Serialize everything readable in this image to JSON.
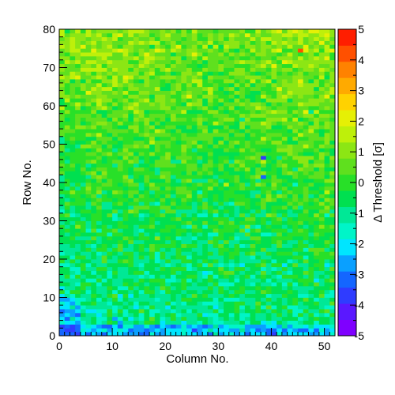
{
  "chart_data": {
    "type": "heatmap",
    "title": "",
    "xlabel": "Column No.",
    "ylabel": "Row No.",
    "zlabel": "Δ Threshold [σ]",
    "x_range": [
      0,
      52
    ],
    "y_range": [
      0,
      80
    ],
    "z_range": [
      -5,
      5
    ],
    "x_bins": 52,
    "y_bins": 80,
    "x_ticks": [
      0,
      10,
      20,
      30,
      40,
      50
    ],
    "y_ticks": [
      0,
      10,
      20,
      30,
      40,
      50,
      60,
      70,
      80
    ],
    "z_ticks": [
      -5,
      -4,
      -3,
      -2,
      -1,
      0,
      1,
      2,
      3,
      4,
      5
    ],
    "grid": false,
    "palette_position": "right",
    "palette_colors": [
      "#7f00ff",
      "#5a18ff",
      "#2f3cff",
      "#1466ff",
      "#0aa0ff",
      "#00e5ff",
      "#00f5c8",
      "#00e896",
      "#00e050",
      "#28e028",
      "#5fe01e",
      "#8ce614",
      "#bef00a",
      "#e6f005",
      "#ffd200",
      "#ffaa00",
      "#ff8200",
      "#ff5000",
      "#ff1e00"
    ],
    "values_description": "per-pixel threshold deviation, mostly between -2 and +2",
    "notable_cells": [
      {
        "x": 38,
        "y": 46,
        "value": -3.5
      },
      {
        "x": 38,
        "y": 41,
        "value": -3.2
      },
      {
        "x": 45,
        "y": 74,
        "value": 4.0
      }
    ]
  }
}
